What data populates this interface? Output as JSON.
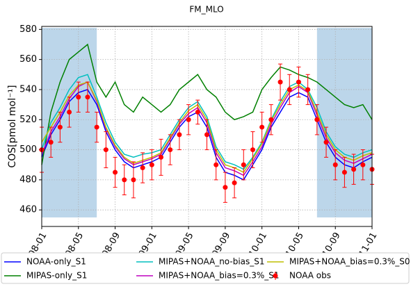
{
  "chart_data": {
    "type": "line",
    "title": "FM_MLO",
    "y_label": "COS[pmol mol⁻¹]",
    "x": [
      "2008-01",
      "2008-02",
      "2008-03",
      "2008-04",
      "2008-05",
      "2008-06",
      "2008-07",
      "2008-08",
      "2008-09",
      "2008-10",
      "2008-11",
      "2008-12",
      "2009-01",
      "2009-02",
      "2009-03",
      "2009-04",
      "2009-05",
      "2009-06",
      "2009-07",
      "2009-08",
      "2009-09",
      "2009-10",
      "2009-11",
      "2009-12",
      "2010-01",
      "2010-02",
      "2010-03",
      "2010-04",
      "2010-05",
      "2010-06",
      "2010-07",
      "2010-08",
      "2010-09",
      "2010-10",
      "2010-11",
      "2010-12",
      "2011-01"
    ],
    "xticks": [
      "2008-01",
      "2008-05",
      "2008-09",
      "2009-01",
      "2009-05",
      "2009-09",
      "2010-01",
      "2010-05",
      "2010-09",
      "2011-01"
    ],
    "ylim": [
      449,
      582
    ],
    "yticks": [
      460,
      480,
      500,
      520,
      540,
      560,
      580
    ],
    "grid": true,
    "shaded_spans": [
      {
        "x": [
          "2008-01",
          "2008-07"
        ],
        "y": [
          455,
          581
        ],
        "color": "#a6c8e3"
      },
      {
        "x": [
          "2010-07",
          "2011-01"
        ],
        "y": [
          455,
          581
        ],
        "color": "#a6c8e3"
      }
    ],
    "series": [
      {
        "name": "NOAA-only_S1",
        "color": "#0000ff",
        "values": [
          495,
          510,
          520,
          532,
          538,
          540,
          530,
          512,
          500,
          492,
          488,
          490,
          492,
          495,
          505,
          515,
          522,
          525,
          515,
          495,
          485,
          483,
          480,
          490,
          500,
          515,
          525,
          535,
          538,
          535,
          520,
          505,
          495,
          490,
          488,
          492,
          495
        ]
      },
      {
        "name": "MIPAS-only_S1",
        "color": "#008000",
        "values": [
          490,
          525,
          545,
          560,
          565,
          570,
          545,
          535,
          545,
          530,
          525,
          535,
          530,
          525,
          530,
          540,
          545,
          550,
          540,
          535,
          525,
          520,
          522,
          525,
          540,
          548,
          555,
          553,
          550,
          548,
          545,
          540,
          535,
          530,
          528,
          530,
          520
        ]
      },
      {
        "name": "MIPAS+NOAA_no-bias_S1",
        "color": "#00bfbf",
        "values": [
          500,
          518,
          528,
          540,
          548,
          550,
          535,
          518,
          505,
          497,
          495,
          497,
          498,
          500,
          510,
          520,
          528,
          532,
          522,
          502,
          492,
          490,
          487,
          495,
          505,
          520,
          532,
          542,
          545,
          540,
          528,
          512,
          502,
          497,
          495,
          498,
          500
        ]
      },
      {
        "name": "MIPAS+NOAA_bias=0.3%_S1",
        "color": "#bf00bf",
        "values": [
          497,
          512,
          522,
          534,
          542,
          545,
          532,
          514,
          502,
          494,
          490,
          492,
          494,
          497,
          507,
          517,
          524,
          528,
          518,
          498,
          488,
          486,
          483,
          492,
          502,
          517,
          528,
          538,
          542,
          538,
          523,
          508,
          498,
          493,
          491,
          494,
          497
        ]
      },
      {
        "name": "MIPAS+NOAA_bias=0.3%_S0",
        "color": "#bfbf00",
        "values": [
          505,
          515,
          525,
          536,
          543,
          545,
          533,
          515,
          503,
          495,
          491,
          493,
          495,
          498,
          508,
          518,
          526,
          530,
          520,
          500,
          490,
          488,
          485,
          494,
          504,
          519,
          530,
          540,
          543,
          539,
          525,
          510,
          500,
          495,
          493,
          496,
          498
        ]
      },
      {
        "name": "NOAA obs",
        "color": "#ff0000",
        "marker": "dot",
        "values": [
          500,
          505,
          515,
          525,
          535,
          535,
          515,
          500,
          485,
          480,
          480,
          488,
          490,
          495,
          500,
          510,
          520,
          525,
          510,
          490,
          475,
          478,
          490,
          500,
          515,
          520,
          545,
          540,
          545,
          540,
          520,
          505,
          490,
          485,
          487,
          490,
          487
        ],
        "errors": [
          15,
          10,
          10,
          10,
          10,
          10,
          10,
          12,
          10,
          10,
          12,
          10,
          10,
          12,
          10,
          10,
          10,
          8,
          10,
          10,
          10,
          10,
          10,
          12,
          10,
          10,
          12,
          10,
          10,
          10,
          10,
          10,
          10,
          10,
          10,
          10,
          10
        ]
      }
    ]
  }
}
